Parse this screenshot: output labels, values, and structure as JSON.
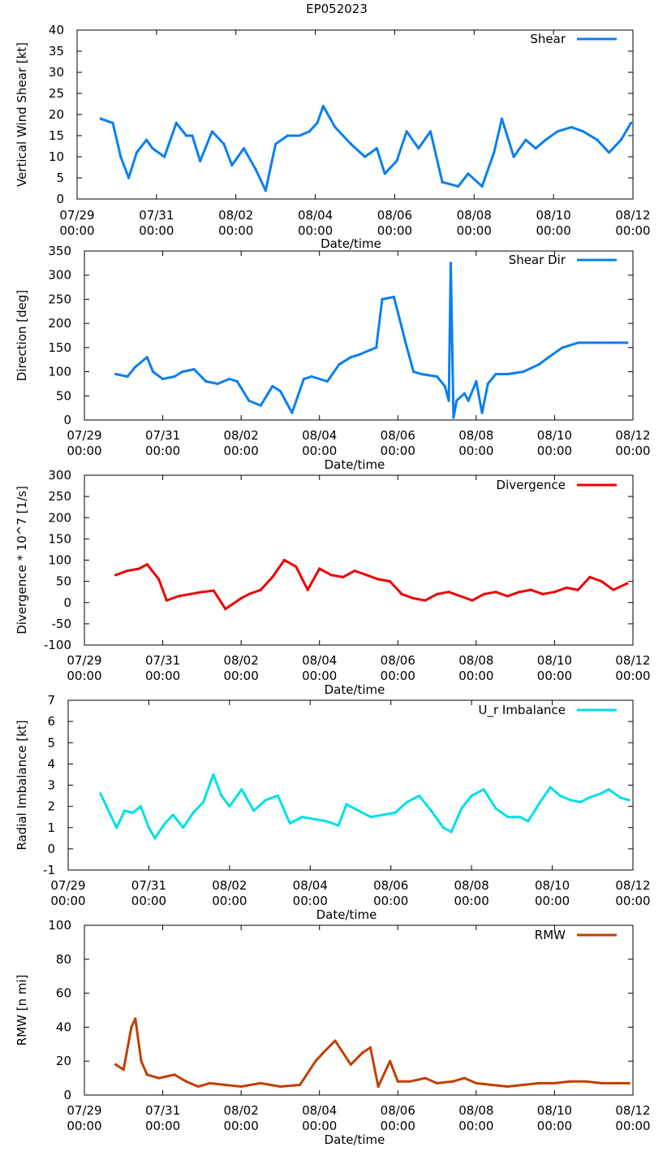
{
  "figure_title": "EP052023",
  "chart_data": [
    {
      "type": "line",
      "legend": "Shear",
      "color": "#0a7ff0",
      "ylabel": "Vertical Wind Shear [kt]",
      "xlabel": "Date/time",
      "ylim": [
        0,
        40
      ],
      "yticks": [
        "0",
        "5",
        "10",
        "15",
        "20",
        "25",
        "30",
        "35",
        "40"
      ],
      "xlim": [
        0,
        14
      ],
      "xtick_dates": [
        "07/29",
        "07/31",
        "08/02",
        "08/04",
        "08/06",
        "08/08",
        "08/10",
        "08/12"
      ],
      "xtick_times": [
        "00:00",
        "00:00",
        "00:00",
        "00:00",
        "00:00",
        "00:00",
        "00:00",
        "00:00"
      ],
      "x": [
        0.6,
        0.9,
        1.1,
        1.3,
        1.5,
        1.75,
        1.9,
        2.2,
        2.5,
        2.75,
        2.9,
        3.1,
        3.4,
        3.7,
        3.9,
        4.2,
        4.5,
        4.75,
        5.0,
        5.3,
        5.6,
        5.85,
        6.05,
        6.2,
        6.5,
        6.9,
        7.25,
        7.55,
        7.75,
        8.05,
        8.3,
        8.6,
        8.9,
        9.2,
        9.6,
        9.85,
        10.2,
        10.5,
        10.7,
        11.0,
        11.3,
        11.55,
        11.8,
        12.1,
        12.45,
        12.75,
        13.1,
        13.4,
        13.7,
        13.95
      ],
      "values": [
        19,
        18,
        10,
        5,
        11,
        14,
        12,
        10,
        18,
        15,
        15,
        9,
        16,
        13,
        8,
        12,
        7,
        2,
        13,
        15,
        15,
        16,
        18,
        22,
        17,
        13,
        10,
        12,
        6,
        9,
        16,
        12,
        16,
        4,
        3,
        6,
        3,
        11,
        19,
        10,
        14,
        12,
        14,
        16,
        17,
        16,
        14,
        11,
        14,
        18
      ]
    },
    {
      "type": "line",
      "legend": "Shear Dir",
      "color": "#0a7ff0",
      "ylabel": "Direction [deg]",
      "xlabel": "Date/time",
      "ylim": [
        0,
        350
      ],
      "yticks": [
        "0",
        "50",
        "100",
        "150",
        "200",
        "250",
        "300",
        "350"
      ],
      "xlim": [
        0,
        14
      ],
      "xtick_dates": [
        "07/29",
        "07/31",
        "08/02",
        "08/04",
        "08/06",
        "08/08",
        "08/10",
        "08/12"
      ],
      "xtick_times": [
        "00:00",
        "00:00",
        "00:00",
        "00:00",
        "00:00",
        "00:00",
        "00:00",
        "00:00"
      ],
      "x": [
        0.8,
        1.1,
        1.3,
        1.6,
        1.75,
        2.0,
        2.3,
        2.5,
        2.8,
        3.1,
        3.4,
        3.7,
        3.9,
        4.2,
        4.5,
        4.8,
        5.0,
        5.3,
        5.6,
        5.8,
        6.2,
        6.5,
        6.8,
        7.0,
        7.3,
        7.45,
        7.6,
        7.9,
        8.2,
        8.4,
        8.6,
        9.0,
        9.2,
        9.3,
        9.35,
        9.42,
        9.5,
        9.7,
        9.8,
        10.0,
        10.15,
        10.3,
        10.5,
        10.8,
        11.2,
        11.6,
        11.85,
        12.2,
        12.6,
        13.0,
        13.4,
        13.85
      ],
      "values": [
        95,
        90,
        110,
        130,
        100,
        85,
        90,
        100,
        105,
        80,
        75,
        85,
        80,
        40,
        30,
        70,
        60,
        15,
        85,
        90,
        80,
        115,
        130,
        135,
        145,
        150,
        250,
        255,
        160,
        100,
        95,
        90,
        70,
        40,
        325,
        5,
        40,
        55,
        40,
        80,
        15,
        75,
        95,
        95,
        100,
        115,
        130,
        150,
        160,
        160,
        160,
        160
      ]
    },
    {
      "type": "line",
      "legend": "Divergence",
      "color": "#ee0000",
      "ylabel": "Divergence * 10^7 [1/s]",
      "xlabel": "Date/time",
      "ylim": [
        -100,
        300
      ],
      "yticks": [
        "-100",
        "-50",
        "0",
        "50",
        "100",
        "150",
        "200",
        "250",
        "300"
      ],
      "xlim": [
        0,
        14
      ],
      "xtick_dates": [
        "07/29",
        "07/31",
        "08/02",
        "08/04",
        "08/06",
        "08/08",
        "08/10",
        "08/12"
      ],
      "xtick_times": [
        "00:00",
        "00:00",
        "00:00",
        "00:00",
        "00:00",
        "00:00",
        "00:00",
        "00:00"
      ],
      "x": [
        0.8,
        1.1,
        1.4,
        1.6,
        1.9,
        2.1,
        2.4,
        2.7,
        3.0,
        3.3,
        3.6,
        4.0,
        4.2,
        4.5,
        4.8,
        5.1,
        5.4,
        5.7,
        6.0,
        6.3,
        6.6,
        6.9,
        7.2,
        7.5,
        7.8,
        8.1,
        8.4,
        8.7,
        9.0,
        9.3,
        9.6,
        9.9,
        10.2,
        10.5,
        10.8,
        11.1,
        11.4,
        11.7,
        12.0,
        12.3,
        12.6,
        12.9,
        13.2,
        13.5,
        13.85
      ],
      "values": [
        65,
        75,
        80,
        90,
        55,
        5,
        15,
        20,
        25,
        28,
        -15,
        10,
        20,
        30,
        60,
        100,
        85,
        30,
        80,
        65,
        60,
        75,
        65,
        55,
        50,
        20,
        10,
        5,
        20,
        25,
        15,
        5,
        20,
        25,
        15,
        25,
        30,
        20,
        25,
        35,
        30,
        60,
        50,
        30,
        45
      ]
    },
    {
      "type": "line",
      "legend": "U_r Imbalance",
      "color": "#00e0e8",
      "ylabel": "Radial Imbalance [kt]",
      "xlabel": "Date/time",
      "ylim": [
        -1,
        7
      ],
      "yticks": [
        "-1",
        "0",
        "1",
        "2",
        "3",
        "4",
        "5",
        "6",
        "7"
      ],
      "xlim": [
        0,
        14
      ],
      "xtick_dates": [
        "07/29",
        "07/31",
        "08/02",
        "08/04",
        "08/06",
        "08/08",
        "08/10",
        "08/12"
      ],
      "xtick_times": [
        "00:00",
        "00:00",
        "00:00",
        "00:00",
        "00:00",
        "00:00",
        "00:00",
        "00:00"
      ],
      "x": [
        0.8,
        0.95,
        1.2,
        1.4,
        1.6,
        1.8,
        2.0,
        2.15,
        2.4,
        2.6,
        2.85,
        3.1,
        3.35,
        3.6,
        3.8,
        4.0,
        4.3,
        4.6,
        4.9,
        5.2,
        5.5,
        5.8,
        6.1,
        6.4,
        6.7,
        6.9,
        7.2,
        7.5,
        7.8,
        8.1,
        8.4,
        8.7,
        9.0,
        9.3,
        9.5,
        9.75,
        10.0,
        10.3,
        10.6,
        10.9,
        11.2,
        11.4,
        11.7,
        11.95,
        12.2,
        12.45,
        12.7,
        12.9,
        13.2,
        13.4,
        13.7,
        13.9
      ],
      "values": [
        2.6,
        2.0,
        1.0,
        1.8,
        1.7,
        2.0,
        1.0,
        0.5,
        1.2,
        1.6,
        1.0,
        1.7,
        2.2,
        3.5,
        2.5,
        2.0,
        2.8,
        1.8,
        2.3,
        2.5,
        1.2,
        1.5,
        1.4,
        1.3,
        1.1,
        2.1,
        1.8,
        1.5,
        1.6,
        1.7,
        2.2,
        2.5,
        1.8,
        1.0,
        0.8,
        1.9,
        2.5,
        2.8,
        1.9,
        1.5,
        1.5,
        1.3,
        2.2,
        2.9,
        2.5,
        2.3,
        2.2,
        2.4,
        2.6,
        2.8,
        2.4,
        2.3
      ]
    },
    {
      "type": "line",
      "legend": "RMW",
      "color": "#c04000",
      "ylabel": "RMW [n mi]",
      "xlabel": "Date/time",
      "ylim": [
        0,
        100
      ],
      "yticks": [
        "0",
        "20",
        "40",
        "60",
        "80",
        "100"
      ],
      "xlim": [
        0,
        14
      ],
      "xtick_dates": [
        "07/29",
        "07/31",
        "08/02",
        "08/04",
        "08/06",
        "08/08",
        "08/10",
        "08/12"
      ],
      "xtick_times": [
        "00:00",
        "00:00",
        "00:00",
        "00:00",
        "00:00",
        "00:00",
        "00:00",
        "00:00"
      ],
      "x": [
        0.8,
        1.0,
        1.2,
        1.3,
        1.45,
        1.6,
        1.9,
        2.3,
        2.6,
        2.9,
        3.2,
        3.6,
        4.0,
        4.5,
        5.0,
        5.5,
        5.9,
        6.1,
        6.4,
        6.8,
        7.1,
        7.3,
        7.5,
        7.8,
        8.0,
        8.3,
        8.7,
        9.0,
        9.4,
        9.7,
        10.0,
        10.4,
        10.8,
        11.2,
        11.6,
        12.0,
        12.4,
        12.8,
        13.2,
        13.6,
        13.9
      ],
      "values": [
        18,
        15,
        40,
        45,
        20,
        12,
        10,
        12,
        8,
        5,
        7,
        6,
        5,
        7,
        5,
        6,
        20,
        25,
        32,
        18,
        25,
        28,
        5,
        20,
        8,
        8,
        10,
        7,
        8,
        10,
        7,
        6,
        5,
        6,
        7,
        7,
        8,
        8,
        7,
        7,
        7
      ]
    }
  ]
}
